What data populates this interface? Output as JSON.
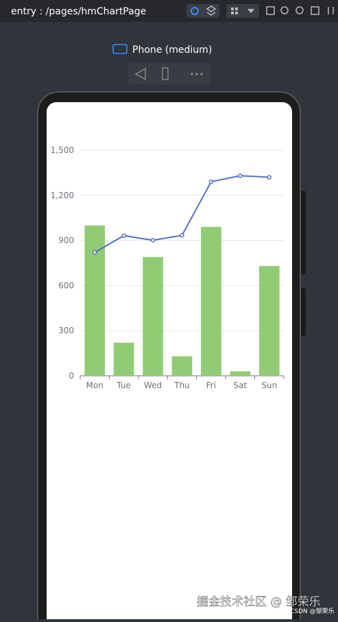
{
  "header": {
    "title": "entry : /pages/hmChartPage"
  },
  "device": {
    "label": "Phone (medium)"
  },
  "watermark": {
    "text": "掘金技术社区 @ 邹荣乐",
    "sub": "CSDN @邹荣乐"
  },
  "chart_data": {
    "type": "bar-line",
    "categories": [
      "Mon",
      "Tue",
      "Wed",
      "Thu",
      "Fri",
      "Sat",
      "Sun"
    ],
    "series": [
      {
        "type": "bar",
        "color": "#91cc75",
        "values": [
          1000,
          220,
          790,
          130,
          990,
          30,
          730
        ]
      },
      {
        "type": "line",
        "color": "#5470c6",
        "values": [
          820,
          932,
          901,
          934,
          1290,
          1330,
          1320
        ]
      }
    ],
    "ylim": [
      0,
      1500
    ],
    "yticks": [
      0,
      300,
      600,
      900,
      {
        "value": 1200,
        "label": "1,200"
      },
      {
        "value": 1500,
        "label": "1,500"
      }
    ],
    "grid": true
  }
}
